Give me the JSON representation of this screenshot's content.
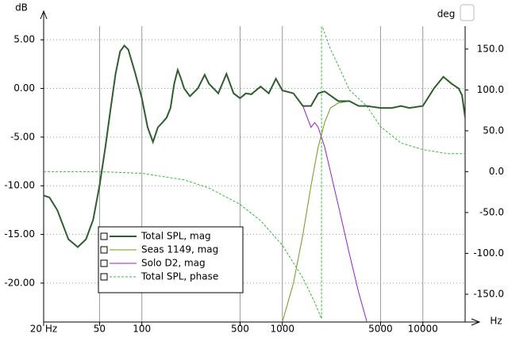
{
  "chart_data": {
    "type": "line",
    "y_label": "dB",
    "y2_label": "deg",
    "x_label": "Hz",
    "xscale": "log",
    "xlim": [
      20,
      20000
    ],
    "ylim": [
      -24,
      6.4
    ],
    "y2lim": [
      -184,
      178
    ],
    "xticks": [
      {
        "value": 20,
        "label": "20 Hz"
      },
      50,
      100,
      500,
      1000,
      5000,
      10000
    ],
    "yticks": [
      {
        "value": 5,
        "label": "5.00"
      },
      {
        "value": 0,
        "label": "0.00"
      },
      {
        "value": -5,
        "label": "-5.00"
      },
      {
        "value": -10,
        "label": "-10.00"
      },
      {
        "value": -15,
        "label": "-15.00"
      },
      {
        "value": -20,
        "label": "-20.00"
      }
    ],
    "y2ticks": [
      {
        "value": 150,
        "label": "150.0"
      },
      {
        "value": 100,
        "label": "100.0"
      },
      {
        "value": 50,
        "label": "50.0"
      },
      {
        "value": 0,
        "label": "0.0"
      },
      {
        "value": -50,
        "label": "-50.0"
      },
      {
        "value": -100,
        "label": "-100.0"
      },
      {
        "value": -150,
        "label": "-150.0"
      }
    ],
    "grid": true,
    "legend": "lower left",
    "series": [
      {
        "name": "Total SPL, mag",
        "color": "#2e5e2e",
        "width": 2,
        "dash": false,
        "x": [
          20,
          22,
          25,
          30,
          35,
          40,
          45,
          50,
          55,
          60,
          65,
          70,
          75,
          80,
          90,
          100,
          110,
          120,
          130,
          140,
          150,
          160,
          170,
          180,
          190,
          200,
          220,
          250,
          280,
          300,
          350,
          400,
          450,
          500,
          550,
          600,
          700,
          800,
          900,
          1000,
          1200,
          1400,
          1600,
          1800,
          2000,
          2500,
          3000,
          3500,
          4000,
          5000,
          6000,
          7000,
          8000,
          10000,
          12000,
          14000,
          16000,
          18000,
          19000,
          20000
        ],
        "values": [
          -11,
          -11.2,
          -12.5,
          -15.5,
          -16.3,
          -15.5,
          -13.5,
          -10,
          -6,
          -2,
          1.5,
          3.8,
          4.4,
          4,
          1.5,
          -1,
          -4,
          -5.5,
          -4,
          -3.5,
          -3,
          -2,
          0.5,
          1.9,
          1,
          0,
          -0.8,
          0,
          1.4,
          0.5,
          -0.5,
          1.5,
          -0.5,
          -1,
          -0.5,
          -0.6,
          0.2,
          -0.5,
          1,
          -0.2,
          -0.5,
          -1.8,
          -1.8,
          -0.5,
          -0.3,
          -1.3,
          -1.3,
          -1.8,
          -1.8,
          -2,
          -2,
          -1.8,
          -2,
          -1.8,
          0,
          1.2,
          0.5,
          0,
          -0.7,
          -3
        ]
      },
      {
        "name": "Seas 1149, mag",
        "color": "#6f9a1c",
        "width": 1,
        "dash": false,
        "x": [
          1000,
          1200,
          1400,
          1600,
          1800,
          2000,
          2200,
          2500,
          3000
        ],
        "values": [
          -24,
          -20,
          -15,
          -10,
          -6,
          -3.5,
          -2,
          -1.5,
          -1.3
        ]
      },
      {
        "name": "Solo D2, mag",
        "color": "#9b1fc9",
        "width": 1,
        "dash": false,
        "x": [
          1000,
          1200,
          1400,
          1600,
          1700,
          1800,
          2000,
          2500,
          3000,
          3500,
          4000
        ],
        "values": [
          -0.2,
          -0.5,
          -1.8,
          -4,
          -3.5,
          -4,
          -6,
          -12,
          -17,
          -21,
          -24
        ]
      },
      {
        "name": "Total SPL, phase",
        "color": "#33bb33",
        "width": 1,
        "dash": true,
        "axis": "y2",
        "x": [
          20,
          50,
          100,
          200,
          300,
          500,
          700,
          1000,
          1400,
          1700,
          1900,
          1900,
          2200,
          2500,
          3000,
          4000,
          5000,
          7000,
          10000,
          15000,
          20000
        ],
        "values": [
          0,
          0,
          -2,
          -10,
          -20,
          -40,
          -60,
          -90,
          -130,
          -160,
          -180,
          180,
          150,
          130,
          100,
          80,
          55,
          35,
          27,
          22,
          22
        ]
      }
    ]
  }
}
